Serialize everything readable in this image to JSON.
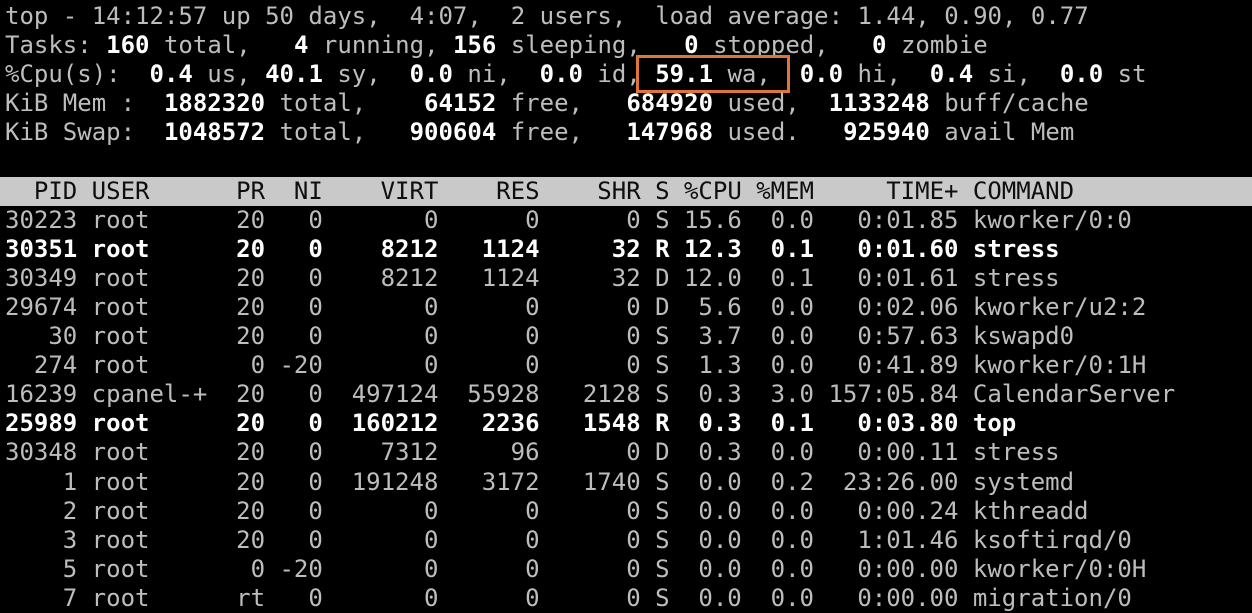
{
  "colors": {
    "background": "#000000",
    "foreground": "#bdbdbd",
    "bold_text": "#ffffff",
    "table_header_bg": "#c9c9c9",
    "table_header_fg": "#0e0e0e",
    "highlight_box": "#e0753a"
  },
  "summary": {
    "lines": [
      {
        "name": "uptime-line",
        "segments": [
          {
            "text": "top - 14:12:57 up 50 days,  4:07,  2 users,  load average: 1.44, 0.90, 0.77"
          }
        ]
      },
      {
        "name": "tasks-line",
        "segments": [
          {
            "text": "Tasks: "
          },
          {
            "text": "160",
            "bold": true
          },
          {
            "text": " total, "
          },
          {
            "text": "  4",
            "bold": true
          },
          {
            "text": " running, "
          },
          {
            "text": "156",
            "bold": true
          },
          {
            "text": " sleeping, "
          },
          {
            "text": "  0",
            "bold": true
          },
          {
            "text": " stopped, "
          },
          {
            "text": "  0",
            "bold": true
          },
          {
            "text": " zombie"
          }
        ]
      },
      {
        "name": "cpu-line",
        "segments": [
          {
            "text": "%Cpu(s): "
          },
          {
            "text": " 0.4",
            "bold": true
          },
          {
            "text": " us, "
          },
          {
            "text": "40.1",
            "bold": true
          },
          {
            "text": " sy, "
          },
          {
            "text": " 0.0",
            "bold": true
          },
          {
            "text": " ni, "
          },
          {
            "text": " 0.0",
            "bold": true
          },
          {
            "text": " id,"
          },
          {
            "name": "io-wait",
            "segments": [
              {
                "text": " "
              },
              {
                "text": "59.1",
                "bold": true
              },
              {
                "text": " wa, "
              }
            ]
          },
          {
            "text": " "
          },
          {
            "text": "0.0",
            "bold": true
          },
          {
            "text": " hi, "
          },
          {
            "text": " 0.4",
            "bold": true
          },
          {
            "text": " si, "
          },
          {
            "text": " 0.0",
            "bold": true
          },
          {
            "text": " st"
          }
        ]
      },
      {
        "name": "mem-line",
        "segments": [
          {
            "text": "KiB Mem : "
          },
          {
            "text": " 1882320",
            "bold": true
          },
          {
            "text": " total, "
          },
          {
            "text": "   64152",
            "bold": true
          },
          {
            "text": " free, "
          },
          {
            "text": "  684920",
            "bold": true
          },
          {
            "text": " used, "
          },
          {
            "text": " 1133248",
            "bold": true
          },
          {
            "text": " buff/cache"
          }
        ]
      },
      {
        "name": "swap-line",
        "segments": [
          {
            "text": "KiB Swap: "
          },
          {
            "text": " 1048572",
            "bold": true
          },
          {
            "text": " total, "
          },
          {
            "text": "  900604",
            "bold": true
          },
          {
            "text": " free, "
          },
          {
            "text": "  147968",
            "bold": true
          },
          {
            "text": " used. "
          },
          {
            "text": "  925940",
            "bold": true
          },
          {
            "text": " avail Mem"
          }
        ]
      }
    ]
  },
  "process_table": {
    "columns": [
      {
        "key": "pid",
        "label": "PID"
      },
      {
        "key": "user",
        "label": "USER"
      },
      {
        "key": "pr",
        "label": "PR"
      },
      {
        "key": "ni",
        "label": "NI"
      },
      {
        "key": "virt",
        "label": "VIRT"
      },
      {
        "key": "res",
        "label": "RES"
      },
      {
        "key": "shr",
        "label": "SHR"
      },
      {
        "key": "s",
        "label": "S"
      },
      {
        "key": "cpu",
        "label": "%CPU"
      },
      {
        "key": "mem",
        "label": "%MEM"
      },
      {
        "key": "time",
        "label": "TIME+"
      },
      {
        "key": "command",
        "label": "COMMAND"
      }
    ],
    "rows": [
      {
        "pid": "30223",
        "user": "root",
        "pr": "20",
        "ni": "0",
        "virt": "0",
        "res": "0",
        "shr": "0",
        "s": "S",
        "cpu": "15.6",
        "mem": "0.0",
        "time": "0:01.85",
        "command": "kworker/0:0",
        "bold": false
      },
      {
        "pid": "30351",
        "user": "root",
        "pr": "20",
        "ni": "0",
        "virt": "8212",
        "res": "1124",
        "shr": "32",
        "s": "R",
        "cpu": "12.3",
        "mem": "0.1",
        "time": "0:01.60",
        "command": "stress",
        "bold": true
      },
      {
        "pid": "30349",
        "user": "root",
        "pr": "20",
        "ni": "0",
        "virt": "8212",
        "res": "1124",
        "shr": "32",
        "s": "D",
        "cpu": "12.0",
        "mem": "0.1",
        "time": "0:01.61",
        "command": "stress",
        "bold": false
      },
      {
        "pid": "29674",
        "user": "root",
        "pr": "20",
        "ni": "0",
        "virt": "0",
        "res": "0",
        "shr": "0",
        "s": "D",
        "cpu": "5.6",
        "mem": "0.0",
        "time": "0:02.06",
        "command": "kworker/u2:2",
        "bold": false
      },
      {
        "pid": "30",
        "user": "root",
        "pr": "20",
        "ni": "0",
        "virt": "0",
        "res": "0",
        "shr": "0",
        "s": "S",
        "cpu": "3.7",
        "mem": "0.0",
        "time": "0:57.63",
        "command": "kswapd0",
        "bold": false
      },
      {
        "pid": "274",
        "user": "root",
        "pr": "0",
        "ni": "-20",
        "virt": "0",
        "res": "0",
        "shr": "0",
        "s": "S",
        "cpu": "1.3",
        "mem": "0.0",
        "time": "0:41.89",
        "command": "kworker/0:1H",
        "bold": false
      },
      {
        "pid": "16239",
        "user": "cpanel-+",
        "pr": "20",
        "ni": "0",
        "virt": "497124",
        "res": "55928",
        "shr": "2128",
        "s": "S",
        "cpu": "0.3",
        "mem": "3.0",
        "time": "157:05.84",
        "command": "CalendarServer",
        "bold": false
      },
      {
        "pid": "25989",
        "user": "root",
        "pr": "20",
        "ni": "0",
        "virt": "160212",
        "res": "2236",
        "shr": "1548",
        "s": "R",
        "cpu": "0.3",
        "mem": "0.1",
        "time": "0:03.80",
        "command": "top",
        "bold": true
      },
      {
        "pid": "30348",
        "user": "root",
        "pr": "20",
        "ni": "0",
        "virt": "7312",
        "res": "96",
        "shr": "0",
        "s": "D",
        "cpu": "0.3",
        "mem": "0.0",
        "time": "0:00.11",
        "command": "stress",
        "bold": false
      },
      {
        "pid": "1",
        "user": "root",
        "pr": "20",
        "ni": "0",
        "virt": "191248",
        "res": "3172",
        "shr": "1740",
        "s": "S",
        "cpu": "0.0",
        "mem": "0.2",
        "time": "23:26.00",
        "command": "systemd",
        "bold": false
      },
      {
        "pid": "2",
        "user": "root",
        "pr": "20",
        "ni": "0",
        "virt": "0",
        "res": "0",
        "shr": "0",
        "s": "S",
        "cpu": "0.0",
        "mem": "0.0",
        "time": "0:00.24",
        "command": "kthreadd",
        "bold": false
      },
      {
        "pid": "3",
        "user": "root",
        "pr": "20",
        "ni": "0",
        "virt": "0",
        "res": "0",
        "shr": "0",
        "s": "S",
        "cpu": "0.0",
        "mem": "0.0",
        "time": "1:01.46",
        "command": "ksoftirqd/0",
        "bold": false
      },
      {
        "pid": "5",
        "user": "root",
        "pr": "0",
        "ni": "-20",
        "virt": "0",
        "res": "0",
        "shr": "0",
        "s": "S",
        "cpu": "0.0",
        "mem": "0.0",
        "time": "0:00.00",
        "command": "kworker/0:0H",
        "bold": false
      },
      {
        "pid": "7",
        "user": "root",
        "pr": "rt",
        "ni": "0",
        "virt": "0",
        "res": "0",
        "shr": "0",
        "s": "S",
        "cpu": "0.0",
        "mem": "0.0",
        "time": "0:00.00",
        "command": "migration/0",
        "bold": false
      }
    ]
  }
}
